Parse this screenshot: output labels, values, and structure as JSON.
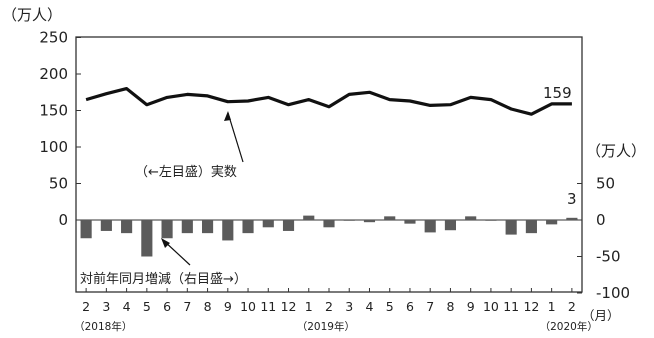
{
  "chart_data": {
    "type": "bar+line",
    "left_axis": {
      "unit_label": "（万人）",
      "ticks": [
        "250",
        "200",
        "150",
        "100",
        "50",
        "0"
      ],
      "range": [
        0,
        250
      ]
    },
    "right_axis": {
      "unit_label": "（万人）",
      "ticks": [
        "50",
        "0",
        "-50",
        "-100"
      ],
      "range": [
        -100,
        50
      ]
    },
    "x_unit_label": "（月）",
    "categories": [
      "2",
      "3",
      "4",
      "5",
      "6",
      "7",
      "8",
      "9",
      "10",
      "11",
      "12",
      "1",
      "2",
      "3",
      "4",
      "5",
      "6",
      "7",
      "8",
      "9",
      "10",
      "11",
      "12",
      "1",
      "2"
    ],
    "year_labels": [
      "（2018年）",
      "（2019年）",
      "（2020年）"
    ],
    "year_label_index": [
      0,
      11,
      23
    ],
    "series": [
      {
        "name": "（←左目盛）実数",
        "type": "line",
        "values": [
          165,
          173,
          180,
          158,
          168,
          172,
          170,
          162,
          163,
          168,
          158,
          165,
          155,
          172,
          175,
          165,
          163,
          157,
          158,
          168,
          165,
          152,
          145,
          159,
          159
        ]
      },
      {
        "name": "対前年同月増減（右目盛→）",
        "type": "bar",
        "values": [
          -25,
          -15,
          -18,
          -50,
          -25,
          -18,
          -18,
          -28,
          -18,
          -10,
          -15,
          6,
          -10,
          0,
          -3,
          5,
          -5,
          -17,
          -14,
          5,
          0,
          -20,
          -18,
          -6,
          3
        ]
      }
    ],
    "annotations": {
      "last_line_value": "159",
      "last_bar_value": "3"
    }
  }
}
